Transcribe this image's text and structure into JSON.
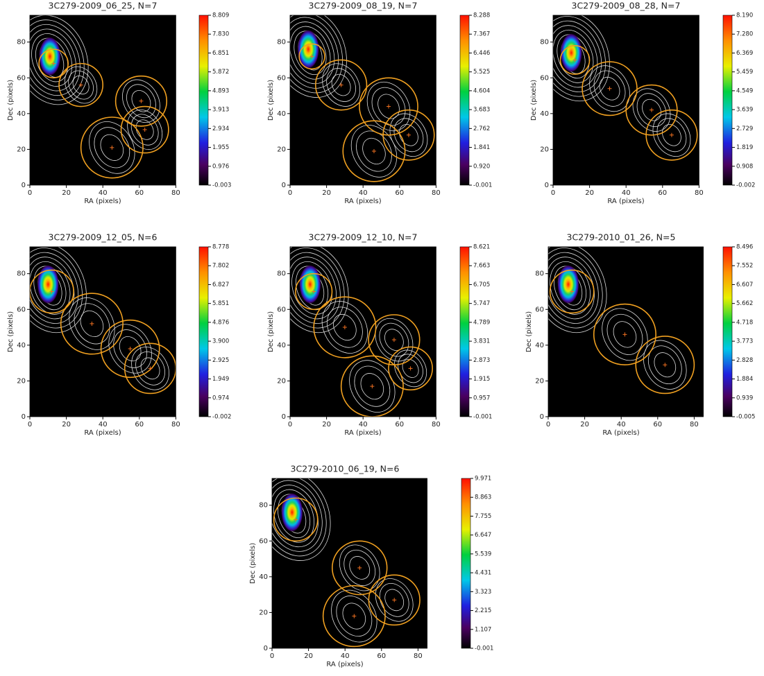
{
  "chart_data": [
    {
      "type": "image",
      "title": "3C279-2009_06_25, N=7",
      "xlabel": "RA (pixels)",
      "ylabel": "Dec (pixels)",
      "xlim": [
        0,
        80
      ],
      "ylim": [
        0,
        95
      ],
      "xticks": [
        0,
        20,
        40,
        60,
        80
      ],
      "yticks": [
        0,
        20,
        40,
        60,
        80
      ],
      "clim": [
        -0.003,
        8.809
      ],
      "cticks": [
        8.809,
        {
          "value": 7.83,
          "label": "7.830"
        },
        6.851,
        5.872,
        4.893,
        3.913,
        2.934,
        1.955,
        0.976,
        -0.003
      ],
      "components": [
        {
          "x": 13,
          "y": 68,
          "r": 8
        },
        {
          "x": 28,
          "y": 56,
          "r": 12
        },
        {
          "x": 61,
          "y": 47,
          "r": 14
        },
        {
          "x": 45,
          "y": 21,
          "r": 17
        },
        {
          "x": 63,
          "y": 31,
          "r": 13
        }
      ]
    },
    {
      "type": "image",
      "title": "3C279-2009_08_19, N=7",
      "xlabel": "RA (pixels)",
      "ylabel": "Dec (pixels)",
      "xlim": [
        0,
        80
      ],
      "ylim": [
        0,
        95
      ],
      "xticks": [
        0,
        20,
        40,
        60,
        80
      ],
      "yticks": [
        0,
        20,
        40,
        60,
        80
      ],
      "clim": [
        -0.001,
        8.288
      ],
      "cticks": [
        8.288,
        7.367,
        6.446,
        5.525,
        4.604,
        3.683,
        2.762,
        1.841,
        {
          "value": 0.92,
          "label": "0.920"
        },
        -0.001
      ],
      "components": [
        {
          "x": 12,
          "y": 72,
          "r": 7
        },
        {
          "x": 28,
          "y": 56,
          "r": 14
        },
        {
          "x": 54,
          "y": 44,
          "r": 16
        },
        {
          "x": 46,
          "y": 19,
          "r": 17
        },
        {
          "x": 65,
          "y": 28,
          "r": 14
        }
      ]
    },
    {
      "type": "image",
      "title": "3C279-2009_08_28, N=7",
      "xlabel": "RA (pixels)",
      "ylabel": "Dec (pixels)",
      "xlim": [
        0,
        80
      ],
      "ylim": [
        0,
        95
      ],
      "xticks": [
        0,
        20,
        40,
        60,
        80
      ],
      "yticks": [
        0,
        20,
        40,
        60,
        80
      ],
      "clim": [
        -0.002,
        8.19
      ],
      "cticks": [
        {
          "value": 8.19,
          "label": "8.190"
        },
        {
          "value": 7.28,
          "label": "7.280"
        },
        6.369,
        5.459,
        4.549,
        3.639,
        2.729,
        1.819,
        0.908,
        -0.002
      ],
      "components": [
        {
          "x": 12,
          "y": 70,
          "r": 8
        },
        {
          "x": 31,
          "y": 54,
          "r": 15
        },
        {
          "x": 54,
          "y": 42,
          "r": 14
        },
        {
          "x": 65,
          "y": 28,
          "r": 14
        }
      ]
    },
    {
      "type": "image",
      "title": "3C279-2009_12_05, N=6",
      "xlabel": "RA (pixels)",
      "ylabel": "Dec (pixels)",
      "xlim": [
        0,
        80
      ],
      "ylim": [
        0,
        95
      ],
      "xticks": [
        0,
        20,
        40,
        60,
        80
      ],
      "yticks": [
        0,
        20,
        40,
        60,
        80
      ],
      "clim": [
        -0.002,
        8.778
      ],
      "cticks": [
        8.778,
        7.802,
        6.827,
        5.851,
        4.876,
        {
          "value": 3.9,
          "label": "3.900"
        },
        2.925,
        1.949,
        0.974,
        -0.002
      ],
      "components": [
        {
          "x": 12,
          "y": 70,
          "r": 12
        },
        {
          "x": 34,
          "y": 52,
          "r": 17
        },
        {
          "x": 55,
          "y": 38,
          "r": 16
        },
        {
          "x": 66,
          "y": 27,
          "r": 14
        }
      ]
    },
    {
      "type": "image",
      "title": "3C279-2009_12_10, N=7",
      "xlabel": "RA (pixels)",
      "ylabel": "Dec (pixels)",
      "xlim": [
        0,
        80
      ],
      "ylim": [
        0,
        95
      ],
      "xticks": [
        0,
        20,
        40,
        60,
        80
      ],
      "yticks": [
        0,
        20,
        40,
        60,
        80
      ],
      "clim": [
        -0.001,
        8.621
      ],
      "cticks": [
        8.621,
        7.663,
        6.705,
        5.747,
        4.789,
        3.831,
        2.873,
        1.915,
        0.957,
        -0.001
      ],
      "components": [
        {
          "x": 13,
          "y": 70,
          "r": 10
        },
        {
          "x": 30,
          "y": 50,
          "r": 17
        },
        {
          "x": 57,
          "y": 43,
          "r": 14
        },
        {
          "x": 45,
          "y": 17,
          "r": 17
        },
        {
          "x": 66,
          "y": 27,
          "r": 12
        }
      ]
    },
    {
      "type": "image",
      "title": "3C279-2010_01_26, N=5",
      "xlabel": "RA (pixels)",
      "ylabel": "Dec (pixels)",
      "xlim": [
        0,
        85
      ],
      "ylim": [
        0,
        95
      ],
      "xticks": [
        0,
        20,
        40,
        60,
        80
      ],
      "yticks": [
        0,
        20,
        40,
        60,
        80
      ],
      "clim": [
        -0.005,
        8.496
      ],
      "cticks": [
        8.496,
        7.552,
        6.607,
        5.662,
        4.718,
        3.773,
        2.828,
        1.884,
        0.939,
        -0.005
      ],
      "components": [
        {
          "x": 13,
          "y": 70,
          "r": 12
        },
        {
          "x": 42,
          "y": 46,
          "r": 17
        },
        {
          "x": 64,
          "y": 29,
          "r": 16
        }
      ]
    },
    {
      "type": "image",
      "title": "3C279-2010_06_19, N=6",
      "xlabel": "RA (pixels)",
      "ylabel": "Dec (pixels)",
      "xlim": [
        0,
        85
      ],
      "ylim": [
        0,
        95
      ],
      "xticks": [
        0,
        20,
        40,
        60,
        80
      ],
      "yticks": [
        0,
        20,
        40,
        60,
        80
      ],
      "clim": [
        -0.001,
        9.971
      ],
      "cticks": [
        9.971,
        8.863,
        7.755,
        6.647,
        5.539,
        4.431,
        3.323,
        2.215,
        1.107,
        -0.001
      ],
      "components": [
        {
          "x": 13,
          "y": 72,
          "r": 12
        },
        {
          "x": 48,
          "y": 45,
          "r": 15
        },
        {
          "x": 45,
          "y": 18,
          "r": 17
        },
        {
          "x": 67,
          "y": 27,
          "r": 14
        }
      ]
    }
  ]
}
